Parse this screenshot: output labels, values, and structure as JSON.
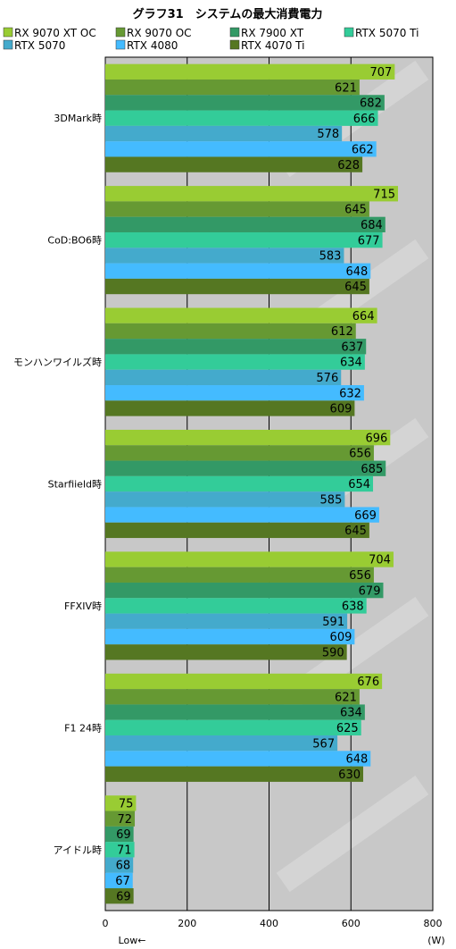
{
  "chart_data": {
    "type": "bar",
    "orientation": "horizontal",
    "title": "グラフ31　システムの最大消費電力",
    "xlabel": "Low←",
    "unit": "(W)",
    "xlim": [
      0,
      800
    ],
    "xticks": [
      0,
      200,
      400,
      600,
      800
    ],
    "grid": true,
    "legend": "top",
    "categories": [
      "3DMark時",
      "CoD:BO6時",
      "モンハンワイルズ時",
      "Starfiield時",
      "FFXIV時",
      "F1 24時",
      "アイドル時"
    ],
    "series": [
      {
        "name": "RX 9070 XT OC",
        "color": "#99cc33",
        "values": [
          707,
          715,
          664,
          696,
          704,
          676,
          75
        ]
      },
      {
        "name": "RX 9070 OC",
        "color": "#669933",
        "values": [
          621,
          645,
          612,
          656,
          656,
          621,
          72
        ]
      },
      {
        "name": "RX 7900 XT",
        "color": "#339966",
        "values": [
          682,
          684,
          637,
          685,
          679,
          634,
          69
        ]
      },
      {
        "name": "RTX 5070 Ti",
        "color": "#33cc99",
        "values": [
          666,
          677,
          634,
          654,
          638,
          625,
          71
        ]
      },
      {
        "name": "RTX 5070",
        "color": "#44aacc",
        "values": [
          578,
          583,
          576,
          585,
          591,
          567,
          68
        ]
      },
      {
        "name": "RTX 4080",
        "color": "#44bbff",
        "values": [
          662,
          648,
          632,
          669,
          609,
          648,
          67
        ]
      },
      {
        "name": "RTX 4070 Ti",
        "color": "#557722",
        "values": [
          628,
          645,
          609,
          645,
          590,
          630,
          69
        ]
      }
    ]
  }
}
